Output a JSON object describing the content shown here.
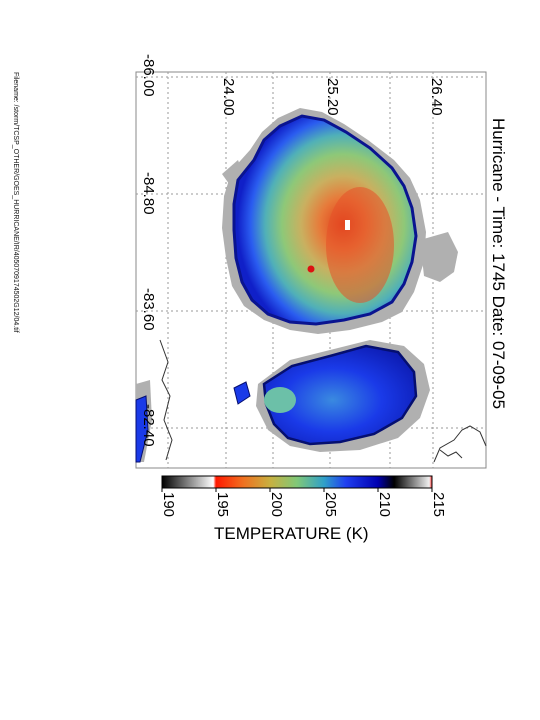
{
  "title": "Hurricane - Time: 1745 Date: 07-09-05",
  "filename": "Filename: /storm/TCSP_OTHER/GOES_HURRICANE/IR/4050709174502G12/04.tif",
  "lat_ticks": [
    "24.00",
    "25.20",
    "26.40"
  ],
  "lon_ticks": [
    "-86.00",
    "-84.80",
    "-83.60",
    "-82.40"
  ],
  "colorbar": {
    "label": "TEMPERATURE (K)",
    "ticks": [
      "190",
      "195",
      "200",
      "205",
      "210",
      "215"
    ],
    "colors": {
      "cold": "#f03010",
      "mid": "#8ec878",
      "warm": "#1428e0",
      "gray": "#9a9a9a"
    }
  },
  "markers": {
    "center_dot_color": "#dd1111",
    "eye_color": "#ffffff"
  }
}
